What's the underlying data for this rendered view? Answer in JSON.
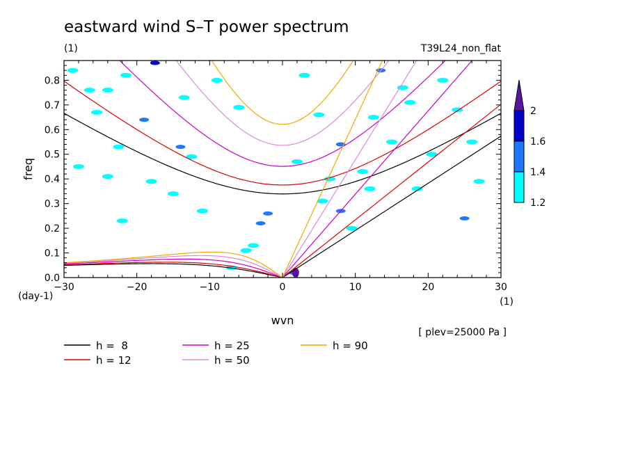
{
  "chart_data": {
    "type": "line",
    "title": "eastward wind S–T power spectrum",
    "subtitle_left": "(1)",
    "subtitle_right": "T39L24_non_flat",
    "xlabel": "wvn",
    "ylabel": "freq",
    "x_unit_label": "(1)",
    "y_unit_label": "(day-1)",
    "annotation": "[ plev=25000 Pa ]",
    "xlim": [
      -30,
      30
    ],
    "ylim": [
      0,
      0.88
    ],
    "x_ticks": [
      -30,
      -20,
      -10,
      0,
      10,
      20,
      30
    ],
    "x_tick_labels": [
      "−30",
      "−20",
      "−10",
      "0",
      "10",
      "20",
      "30"
    ],
    "y_ticks": [
      0.0,
      0.1,
      0.2,
      0.3,
      0.4,
      0.5,
      0.6,
      0.7,
      0.8
    ],
    "y_tick_labels": [
      "0.0",
      "0.1",
      "0.2",
      "0.3",
      "0.4",
      "0.5",
      "0.6",
      "0.7",
      "0.8"
    ],
    "series": [
      {
        "name": "h =  8",
        "h": 8,
        "color": "#000000"
      },
      {
        "name": "h = 12",
        "h": 12,
        "color": "#dd0000"
      },
      {
        "name": "h = 25",
        "h": 25,
        "color": "#cc00cc"
      },
      {
        "name": "h = 50",
        "h": 50,
        "color": "#dd88dd"
      },
      {
        "name": "h = 90",
        "h": 90,
        "color": "#eeaa00"
      }
    ],
    "colorbar": {
      "levels": [
        1.2,
        1.4,
        1.6,
        2
      ],
      "level_labels": [
        "1.2",
        "1.4",
        "1.6",
        "2"
      ],
      "colors": [
        "#00ffff",
        "#1e78ff",
        "#0000c8",
        "#5a14a0"
      ]
    },
    "contour_blobs": [
      {
        "x": -28.8,
        "y": 0.84,
        "l": 0
      },
      {
        "x": -26.5,
        "y": 0.76,
        "l": 0
      },
      {
        "x": -25.5,
        "y": 0.67,
        "l": 0
      },
      {
        "x": -24.0,
        "y": 0.76,
        "l": 0
      },
      {
        "x": -21.5,
        "y": 0.82,
        "l": 0
      },
      {
        "x": -19.0,
        "y": 0.64,
        "l": 1
      },
      {
        "x": -17.5,
        "y": 0.87,
        "l": 2
      },
      {
        "x": -14.0,
        "y": 0.53,
        "l": 1
      },
      {
        "x": -13.5,
        "y": 0.73,
        "l": 0
      },
      {
        "x": -12.5,
        "y": 0.49,
        "l": 0
      },
      {
        "x": -9.0,
        "y": 0.8,
        "l": 0
      },
      {
        "x": -6.0,
        "y": 0.69,
        "l": 0
      },
      {
        "x": -22.5,
        "y": 0.53,
        "l": 0
      },
      {
        "x": -28.0,
        "y": 0.45,
        "l": 0
      },
      {
        "x": -24.0,
        "y": 0.41,
        "l": 0
      },
      {
        "x": -15.0,
        "y": 0.34,
        "l": 0
      },
      {
        "x": -2.0,
        "y": 0.26,
        "l": 1
      },
      {
        "x": -3.0,
        "y": 0.22,
        "l": 1
      },
      {
        "x": -4.0,
        "y": 0.13,
        "l": 0
      },
      {
        "x": -5.0,
        "y": 0.11,
        "l": 0
      },
      {
        "x": -18.0,
        "y": 0.39,
        "l": 0
      },
      {
        "x": -11.0,
        "y": 0.27,
        "l": 0
      },
      {
        "x": -22.0,
        "y": 0.23,
        "l": 0
      },
      {
        "x": -7.0,
        "y": 0.04,
        "l": 0
      },
      {
        "x": 3.0,
        "y": 0.82,
        "l": 0
      },
      {
        "x": 5.0,
        "y": 0.66,
        "l": 0
      },
      {
        "x": 8.0,
        "y": 0.54,
        "l": 1
      },
      {
        "x": 11.0,
        "y": 0.43,
        "l": 0
      },
      {
        "x": 12.5,
        "y": 0.65,
        "l": 0
      },
      {
        "x": 13.5,
        "y": 0.84,
        "l": 1
      },
      {
        "x": 16.5,
        "y": 0.77,
        "l": 0
      },
      {
        "x": 17.5,
        "y": 0.71,
        "l": 0
      },
      {
        "x": 15.0,
        "y": 0.55,
        "l": 0
      },
      {
        "x": 5.5,
        "y": 0.31,
        "l": 0
      },
      {
        "x": 8.0,
        "y": 0.27,
        "l": 1
      },
      {
        "x": 9.5,
        "y": 0.2,
        "l": 0
      },
      {
        "x": 12.0,
        "y": 0.36,
        "l": 0
      },
      {
        "x": 18.5,
        "y": 0.36,
        "l": 0
      },
      {
        "x": 20.5,
        "y": 0.5,
        "l": 0
      },
      {
        "x": 24.0,
        "y": 0.68,
        "l": 0
      },
      {
        "x": 25.0,
        "y": 0.24,
        "l": 1
      },
      {
        "x": 27.0,
        "y": 0.39,
        "l": 0
      },
      {
        "x": 22.0,
        "y": 0.8,
        "l": 0
      },
      {
        "x": 26.0,
        "y": 0.55,
        "l": 0
      },
      {
        "x": 2.0,
        "y": 0.47,
        "l": 0
      },
      {
        "x": 6.5,
        "y": 0.4,
        "l": 0
      },
      {
        "x": 1.5,
        "y": 0.02,
        "l": 1
      },
      {
        "x": 1.8,
        "y": 0.02,
        "l": 3
      }
    ]
  },
  "legend": {
    "entries": [
      {
        "label": "h =  8",
        "color": "#000000"
      },
      {
        "label": "h = 12",
        "color": "#dd0000"
      },
      {
        "label": "h = 25",
        "color": "#cc00cc"
      },
      {
        "label": "h = 50",
        "color": "#dd88dd"
      },
      {
        "label": "h = 90",
        "color": "#eeaa00"
      }
    ]
  }
}
